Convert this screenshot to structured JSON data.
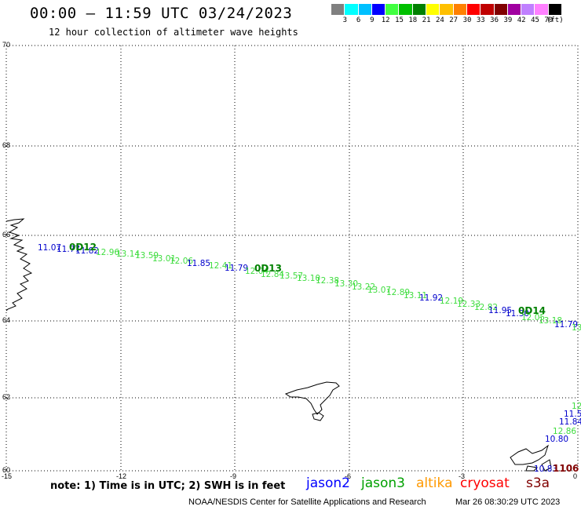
{
  "header": {
    "title": "00:00 – 11:59 UTC 03/24/2023",
    "subtitle": "12 hour collection of altimeter wave heights"
  },
  "colorbar": {
    "unit": "(ft)",
    "colors": [
      "#808080",
      "#00ffff",
      "#00c0ff",
      "#0000ff",
      "#40ff40",
      "#00c000",
      "#008000",
      "#ffff00",
      "#ffc000",
      "#ff8000",
      "#ff0000",
      "#c00000",
      "#800000",
      "#a000a0",
      "#c080ff",
      "#ff80ff",
      "#000000"
    ],
    "labels": [
      "3",
      "6",
      "9",
      "12",
      "15",
      "18",
      "21",
      "24",
      "27",
      "30",
      "33",
      "36",
      "39",
      "42",
      "45",
      "70"
    ]
  },
  "axes": {
    "y_ticks": [
      "70",
      "68",
      "66",
      "64",
      "62",
      "60"
    ],
    "x_ticks": [
      "-15",
      "-12",
      "-9",
      "-6",
      "-3",
      "0"
    ]
  },
  "measurements": [
    {
      "text": "11.07",
      "color": "#0000cc"
    },
    {
      "text": "11.77",
      "color": "#0000cc"
    },
    {
      "text": "11.82",
      "color": "#0000cc"
    },
    {
      "text": "12.96",
      "color": "#40dd40"
    },
    {
      "text": "13.14",
      "color": "#40dd40"
    },
    {
      "text": "13.59",
      "color": "#40dd40"
    },
    {
      "text": "13.01",
      "color": "#40dd40"
    },
    {
      "text": "12.06",
      "color": "#40dd40"
    },
    {
      "text": "11.85",
      "color": "#0000cc"
    },
    {
      "text": "12.41",
      "color": "#40dd40"
    },
    {
      "text": "11.79",
      "color": "#0000cc"
    },
    {
      "text": "12.04",
      "color": "#40dd40"
    },
    {
      "text": "12.84",
      "color": "#40dd40"
    },
    {
      "text": "13.57",
      "color": "#40dd40"
    },
    {
      "text": "13.10",
      "color": "#40dd40"
    },
    {
      "text": "12.38",
      "color": "#40dd40"
    },
    {
      "text": "13.30",
      "color": "#40dd40"
    },
    {
      "text": "13.22",
      "color": "#40dd40"
    },
    {
      "text": "13.07",
      "color": "#40dd40"
    },
    {
      "text": "12.89",
      "color": "#40dd40"
    },
    {
      "text": "13.11",
      "color": "#40dd40"
    },
    {
      "text": "11.92",
      "color": "#0000cc"
    },
    {
      "text": "12.19",
      "color": "#40dd40"
    },
    {
      "text": "12.33",
      "color": "#40dd40"
    },
    {
      "text": "12.82",
      "color": "#40dd40"
    },
    {
      "text": "11.95",
      "color": "#0000cc"
    },
    {
      "text": "11.30",
      "color": "#0000cc"
    },
    {
      "text": "12.05",
      "color": "#40dd40"
    },
    {
      "text": "13.18",
      "color": "#40dd40"
    },
    {
      "text": "11.79",
      "color": "#0000cc"
    },
    {
      "text": "13",
      "color": "#40dd40"
    },
    {
      "text": "12",
      "color": "#40dd40"
    },
    {
      "text": "11.5",
      "color": "#0000cc"
    },
    {
      "text": "11.84",
      "color": "#0000cc"
    },
    {
      "text": "12.86",
      "color": "#40dd40"
    },
    {
      "text": "10.80",
      "color": "#0000cc"
    },
    {
      "text": "10.83",
      "color": "#0000cc"
    }
  ],
  "passes": [
    {
      "text": "0D12",
      "color": "#008000"
    },
    {
      "text": "0D13",
      "color": "#008000"
    },
    {
      "text": "0D14",
      "color": "#008000"
    },
    {
      "text": "1106",
      "color": "#800000"
    }
  ],
  "footer": {
    "note": "note: 1) Time is in UTC; 2) SWH is in feet",
    "satellites": [
      {
        "name": "jason2",
        "color": "#0000ff"
      },
      {
        "name": "jason3",
        "color": "#00a000"
      },
      {
        "name": "altika",
        "color": "#ff9900"
      },
      {
        "name": "cryosat",
        "color": "#ff0000"
      },
      {
        "name": "s3a",
        "color": "#800000"
      }
    ],
    "credit": "NOAA/NESDIS Center for Satellite Applications and Research",
    "timestamp": "Mar 26 08:30:29 UTC 2023"
  }
}
